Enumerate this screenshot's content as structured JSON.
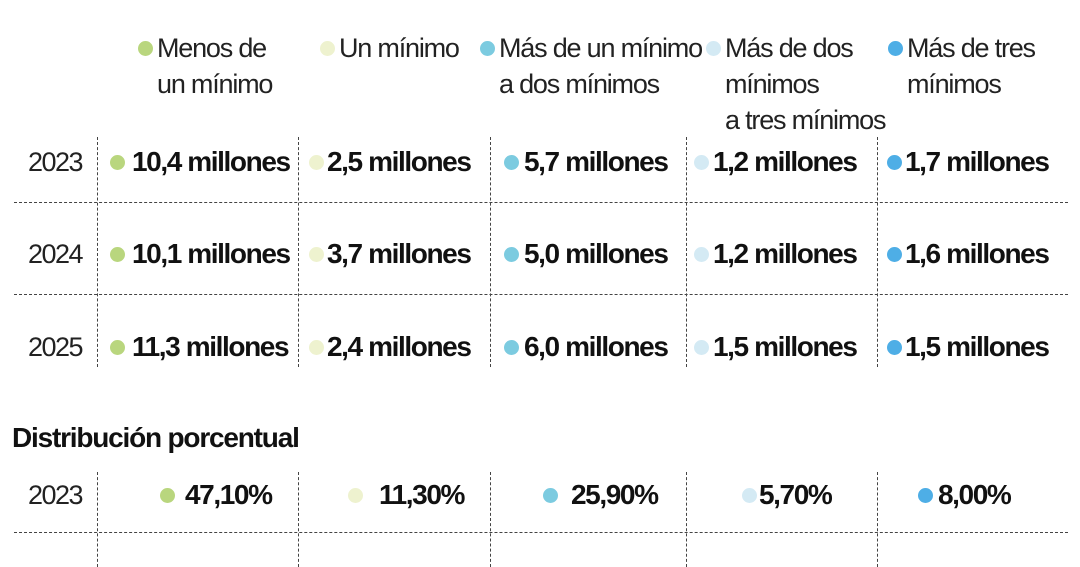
{
  "colors": {
    "menos_de_un_minimo": "#b9d67e",
    "un_minimo": "#eef2cf",
    "mas_de_un_minimo": "#7ccbe0",
    "mas_de_dos_minimos": "#d4eaf4",
    "mas_de_tres_minimos": "#4eaee6"
  },
  "legend": [
    {
      "line1": "Menos de",
      "line2": "un mínimo",
      "line3": ""
    },
    {
      "line1": "Un mínimo",
      "line2": "",
      "line3": ""
    },
    {
      "line1": "Más de un mínimo",
      "line2": "a dos mínimos",
      "line3": ""
    },
    {
      "line1": "Más de dos",
      "line2": "mínimos",
      "line3": "a tres mínimos"
    },
    {
      "line1": "Más de tres",
      "line2": "mínimos",
      "line3": ""
    }
  ],
  "rows": [
    {
      "year": "2023",
      "values": [
        "10,4 millones",
        "2,5 millones",
        "5,7 millones",
        "1,2 millones",
        "1,7 millones"
      ]
    },
    {
      "year": "2024",
      "values": [
        "10,1 millones",
        "3,7 millones",
        "5,0 millones",
        "1,2 millones",
        "1,6 millones"
      ]
    },
    {
      "year": "2025",
      "values": [
        "11,3 millones",
        "2,4 millones",
        "6,0 millones",
        "1,5 millones",
        "1,5 millones"
      ]
    }
  ],
  "distribution": {
    "title": "Distribución porcentual",
    "rows": [
      {
        "year": "2023",
        "values": [
          "47,10%",
          "11,30%",
          "25,90%",
          "5,70%",
          "8,00%"
        ]
      }
    ]
  },
  "chart_data": {
    "type": "table",
    "categories": [
      "Menos de un mínimo",
      "Un mínimo",
      "Más de un mínimo a dos mínimos",
      "Más de dos mínimos a tres mínimos",
      "Más de tres mínimos"
    ],
    "series": [
      {
        "name": "2023",
        "values": [
          10.4,
          2.5,
          5.7,
          1.2,
          1.7
        ]
      },
      {
        "name": "2024",
        "values": [
          10.1,
          3.7,
          5.0,
          1.2,
          1.6
        ]
      },
      {
        "name": "2025",
        "values": [
          11.3,
          2.4,
          6.0,
          1.5,
          1.5
        ]
      }
    ],
    "percent_distribution": [
      {
        "name": "2023",
        "values": [
          47.1,
          11.3,
          25.9,
          5.7,
          8.0
        ]
      }
    ],
    "title": "",
    "subtitle": "Distribución porcentual"
  }
}
